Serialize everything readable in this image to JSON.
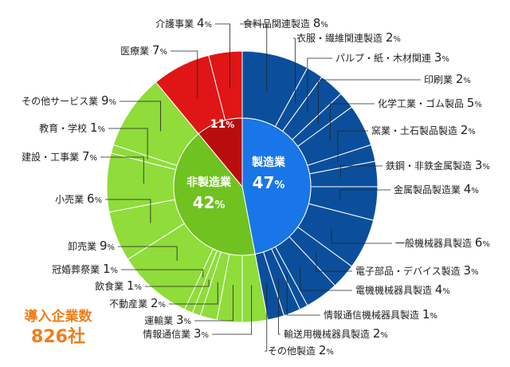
{
  "total": {
    "label": "導入企業数",
    "count": "826",
    "unit": "社"
  },
  "chart_data": {
    "type": "pie",
    "unit": "%",
    "groups": [
      {
        "name": "製造業",
        "value": 47,
        "color": "#1976e8"
      },
      {
        "name": "非製造業",
        "value": 42,
        "color": "#6fc21f"
      },
      {
        "name": "",
        "value": 11,
        "color": "#b80d0d"
      }
    ],
    "categories": [
      {
        "name": "食料品関連製造",
        "value": 8,
        "group": 0
      },
      {
        "name": "衣服・繊維関連製造",
        "value": 2,
        "group": 0
      },
      {
        "name": "パルプ・紙・木材関連",
        "value": 3,
        "group": 0
      },
      {
        "name": "印刷業",
        "value": 2,
        "group": 0
      },
      {
        "name": "化学工業・ゴム製品",
        "value": 5,
        "group": 0
      },
      {
        "name": "窯業・土石製品製造",
        "value": 2,
        "group": 0
      },
      {
        "name": "鉄鋼・非鉄金属製造",
        "value": 3,
        "group": 0
      },
      {
        "name": "金属製品製造業",
        "value": 4,
        "group": 0
      },
      {
        "name": "一般機械器具製造",
        "value": 6,
        "group": 0
      },
      {
        "name": "電子部品・デバイス製造",
        "value": 3,
        "group": 0
      },
      {
        "name": "電機機械器具製造",
        "value": 4,
        "group": 0
      },
      {
        "name": "情報通信機械器具製造",
        "value": 1,
        "group": 0
      },
      {
        "name": "輸送用機械器具製造",
        "value": 2,
        "group": 0
      },
      {
        "name": "その他製造",
        "value": 2,
        "group": 0
      },
      {
        "name": "情報通信業",
        "value": 3,
        "group": 1
      },
      {
        "name": "運輸業",
        "value": 3,
        "group": 1
      },
      {
        "name": "不動産業",
        "value": 2,
        "group": 1
      },
      {
        "name": "飲食業",
        "value": 1,
        "group": 1
      },
      {
        "name": "冠婚葬祭業",
        "value": 1,
        "group": 1
      },
      {
        "name": "卸売業",
        "value": 9,
        "group": 1
      },
      {
        "name": "小売業",
        "value": 6,
        "group": 1
      },
      {
        "name": "建設・工事業",
        "value": 7,
        "group": 1
      },
      {
        "name": "教育・学校",
        "value": 1,
        "group": 1
      },
      {
        "name": "その他サービス業",
        "value": 9,
        "group": 1
      },
      {
        "name": "医療業",
        "value": 7,
        "group": 2
      },
      {
        "name": "介護事業",
        "value": 4,
        "group": 2
      }
    ],
    "outer_color_by_group": [
      "#0b4f9c",
      "#8fdc3b",
      "#e01515"
    ],
    "title": "",
    "legend": "none"
  }
}
